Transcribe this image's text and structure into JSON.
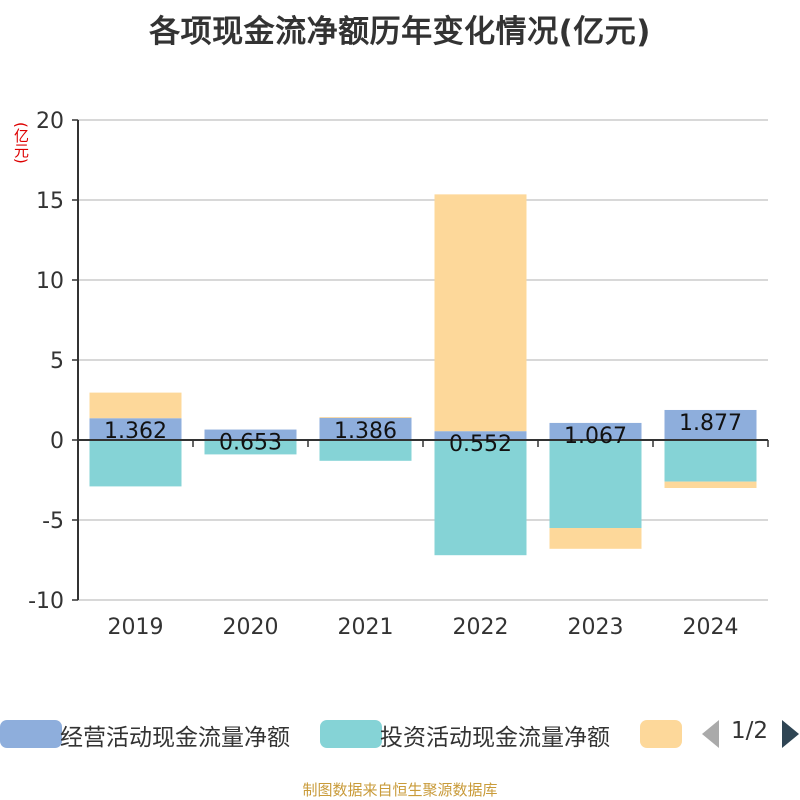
{
  "title": "各项现金流净额历年变化情况(亿元)",
  "unit_label": "(亿元)",
  "footer": "制图数据来自恒生聚源数据库",
  "pager": {
    "text": "1/2"
  },
  "chart_data": {
    "type": "bar",
    "stacked": true,
    "categories": [
      "2019",
      "2020",
      "2021",
      "2022",
      "2023",
      "2024"
    ],
    "series": [
      {
        "name": "经营活动现金流量净额",
        "color": "#8eaedc",
        "values": [
          1.362,
          0.653,
          1.386,
          0.552,
          1.067,
          1.877
        ],
        "labels": [
          "1.362",
          "0.653",
          "1.386",
          "0.552",
          "1.067",
          "1.877"
        ]
      },
      {
        "name": "投资活动现金流量净额",
        "color": "#85d3d6",
        "values": [
          -2.9,
          -0.9,
          -1.3,
          -7.2,
          -5.5,
          -2.6
        ]
      },
      {
        "name": "",
        "color": "#fdd89a",
        "values": [
          1.6,
          0.0,
          0.05,
          14.8,
          -1.3,
          -0.4
        ]
      }
    ],
    "yticks": [
      20,
      15,
      10,
      5,
      0,
      -5,
      -10
    ],
    "ylim": [
      -10,
      20
    ],
    "grid": true,
    "legend_position": "bottom"
  }
}
